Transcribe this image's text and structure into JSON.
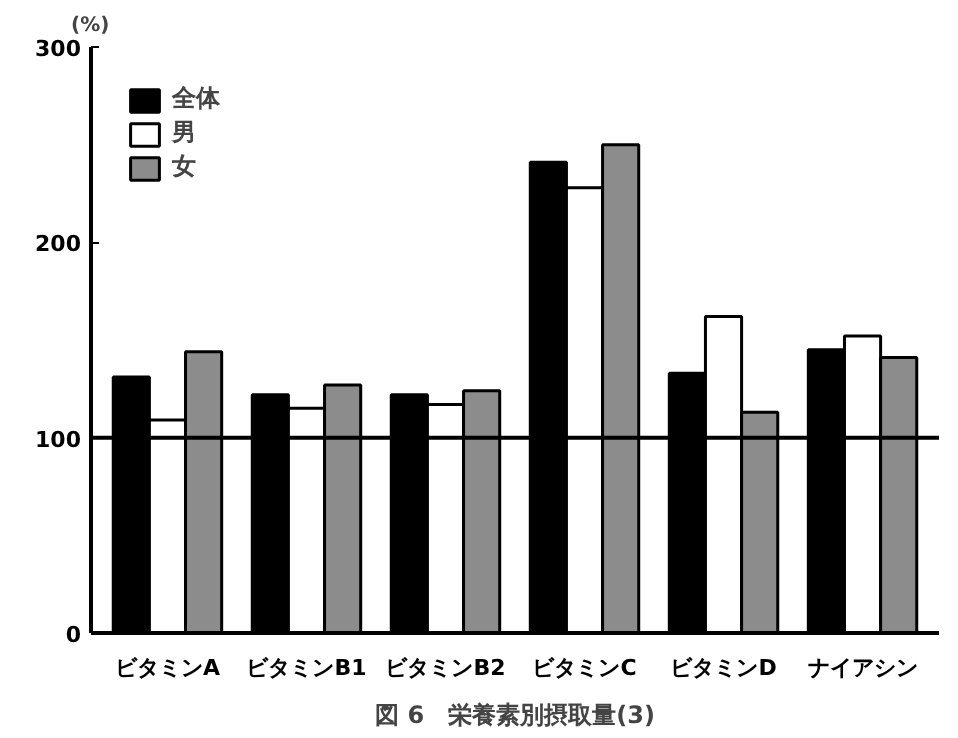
{
  "chart_data": {
    "type": "bar",
    "title": "図 6　栄養素別摂取量(3)",
    "ylabel": "(%)",
    "categories": [
      "ビタミンA",
      "ビタミンB1",
      "ビタミンB2",
      "ビタミンC",
      "ビタミンD",
      "ナイアシン"
    ],
    "series": [
      {
        "name": "全体",
        "color": "#000000",
        "values": [
          131,
          122,
          122,
          241,
          133,
          145
        ]
      },
      {
        "name": "男",
        "color": "#ffffff",
        "values": [
          109,
          115,
          117,
          228,
          162,
          152
        ]
      },
      {
        "name": "女",
        "color": "#8c8c8c",
        "values": [
          144,
          127,
          124,
          250,
          113,
          141
        ]
      }
    ],
    "ylim": [
      0,
      300
    ],
    "yticks": [
      0,
      100,
      200,
      300
    ],
    "grid": false,
    "legend": "top left",
    "ref_lines": [
      {
        "axis": "y",
        "value": 100,
        "color": "#000000"
      }
    ]
  }
}
